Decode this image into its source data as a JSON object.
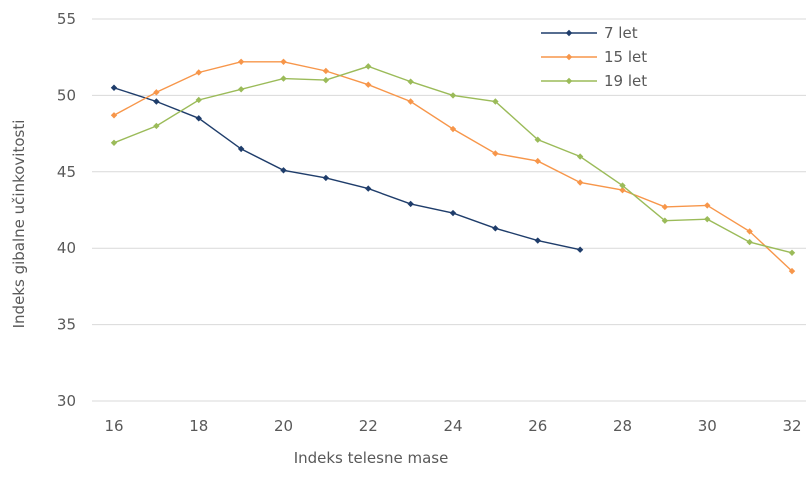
{
  "chart_data": {
    "type": "line",
    "title": "",
    "xlabel": "Indeks telesne mase",
    "ylabel": "Indeks gibalne učinkovitosti",
    "xlim": [
      16,
      32
    ],
    "ylim": [
      30,
      55
    ],
    "x_ticks": [
      16,
      18,
      20,
      22,
      24,
      26,
      28,
      30,
      32
    ],
    "y_ticks": [
      30,
      35,
      40,
      45,
      50,
      55
    ],
    "grid": "horizontal",
    "legend_position": "top-right",
    "series": [
      {
        "name": "7 let",
        "color": "#1f3d6b",
        "x": [
          16,
          17,
          18,
          19,
          20,
          21,
          22,
          23,
          24,
          25,
          26,
          27
        ],
        "y": [
          50.5,
          49.6,
          48.5,
          46.5,
          45.1,
          44.6,
          43.9,
          42.9,
          42.3,
          41.3,
          40.5,
          39.9
        ]
      },
      {
        "name": "15 let",
        "color": "#f7964a",
        "x": [
          16,
          17,
          18,
          19,
          20,
          21,
          22,
          23,
          24,
          25,
          26,
          27,
          28,
          29,
          30,
          31,
          32
        ],
        "y": [
          48.7,
          50.2,
          51.5,
          52.2,
          52.2,
          51.6,
          50.7,
          49.6,
          47.8,
          46.2,
          45.7,
          44.3,
          43.8,
          42.7,
          42.8,
          41.1,
          38.5
        ]
      },
      {
        "name": "19 let",
        "color": "#9bbb59",
        "x": [
          16,
          17,
          18,
          19,
          20,
          21,
          22,
          23,
          24,
          25,
          26,
          27,
          28,
          29,
          30,
          31,
          32
        ],
        "y": [
          46.9,
          48.0,
          49.7,
          50.4,
          51.1,
          51.0,
          51.9,
          50.9,
          50.0,
          49.6,
          47.1,
          46.0,
          44.1,
          41.8,
          41.9,
          40.4,
          39.7
        ]
      }
    ]
  }
}
